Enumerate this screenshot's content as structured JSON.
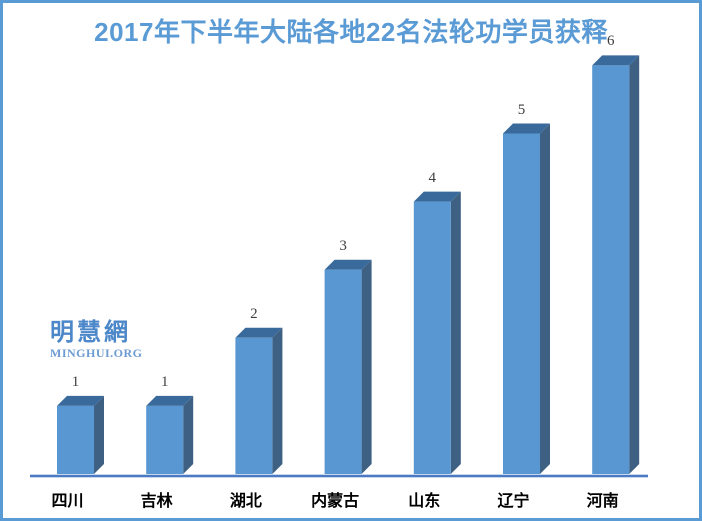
{
  "title": "2017年下半年大陆各地22名法轮功学员获释",
  "title_color": "#5B9BD5",
  "frame": {
    "border_color": "#5B9BD5",
    "background": "#FFFFFF"
  },
  "watermark": {
    "line1": "明慧網",
    "line2": "MINGHUI.ORG",
    "color_cn": "#4C87C9",
    "color_url": "#6D9CD1"
  },
  "chart_data": {
    "type": "bar",
    "style": "3d-column",
    "title": "2017年下半年大陆各地22名法轮功学员获释",
    "categories": [
      "四川",
      "吉林",
      "湖北",
      "内蒙古",
      "山东",
      "辽宁",
      "河南"
    ],
    "values": [
      1,
      1,
      2,
      3,
      4,
      5,
      6
    ],
    "data_labels": [
      "1",
      "1",
      "2",
      "3",
      "4",
      "5",
      "6"
    ],
    "xlabel": "",
    "ylabel": "",
    "ylim": [
      0,
      6
    ],
    "grid": false,
    "legend": false,
    "colors": {
      "bar_front": "#5997D2",
      "bar_top": "#3A6A9B",
      "bar_side": "#3E6183",
      "axis_line": "#4B7AC2",
      "axis_highlight": "#C7D7EF",
      "value_label": "#404040",
      "category_label": "#000000"
    }
  }
}
